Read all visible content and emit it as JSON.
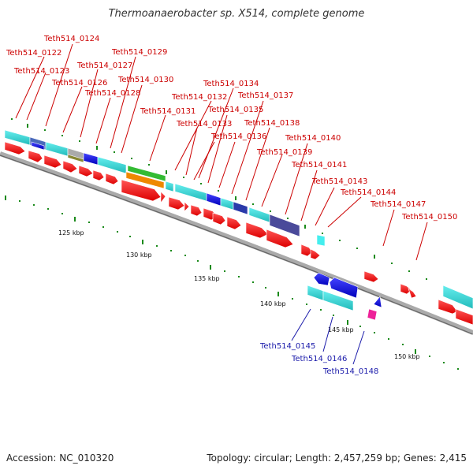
{
  "title": "Thermoanaerobacter sp. X514, complete genome",
  "footer": {
    "accession": "Accession: NC_010320",
    "topology": "Topology: circular; Length: 2,457,259 bp; Genes: 2,415"
  },
  "scale_labels": [
    "125 kbp",
    "130 kbp",
    "135 kbp",
    "140 kbp",
    "145 kbp",
    "150 kbp"
  ],
  "forward_genes": [
    "Teth514_0122",
    "Teth514_0123",
    "Teth514_0124",
    "Teth514_0126",
    "Teth514_0127",
    "Teth514_0128",
    "Teth514_0129",
    "Teth514_0130",
    "Teth514_0131",
    "Teth514_0132",
    "Teth514_0133",
    "Teth514_0134",
    "Teth514_0135",
    "Teth514_0136",
    "Teth514_0137",
    "Teth514_0138",
    "Teth514_0139",
    "Teth514_0140",
    "Teth514_0141",
    "Teth514_0143",
    "Teth514_0144",
    "Teth514_0147",
    "Teth514_0150"
  ],
  "reverse_genes": [
    "Teth514_0145",
    "Teth514_0146",
    "Teth514_0148"
  ],
  "colors": {
    "forward_label": "#cc0000",
    "reverse_label": "#1a1aaa",
    "cds_arrow": "#ff0000",
    "cog_cyan": "#33cccc",
    "cog_blue": "#1a1adb",
    "cog_slate": "#4a4a9a",
    "cog_green": "#33bb33",
    "cog_orange": "#ee8800",
    "cog_olive": "#888833",
    "cog_magenta": "#ee2299",
    "backbone": "#888888",
    "tick": "#1a8a1a"
  }
}
